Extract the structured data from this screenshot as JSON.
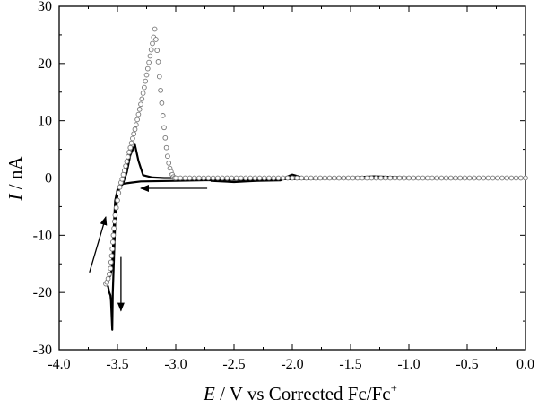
{
  "chart_data": {
    "type": "line",
    "xlabel": {
      "italic": "E",
      "rest": " / V vs Corrected Fc/Fc",
      "sup": "+"
    },
    "ylabel": {
      "italic": "I",
      "rest": " / nA"
    },
    "xlim": [
      -4.0,
      0.0
    ],
    "ylim": [
      -30,
      30
    ],
    "x_ticks": [
      "-4.0",
      "-3.5",
      "-3.0",
      "-2.5",
      "-2.0",
      "-1.5",
      "-1.0",
      "-0.5",
      "0.0"
    ],
    "y_ticks": [
      "-30",
      "-20",
      "-10",
      "0",
      "10",
      "20",
      "30"
    ],
    "grid": false,
    "series": [
      {
        "style": "solid",
        "x": [
          -2.7,
          -2.5,
          -2.4,
          -2.3,
          -2.1,
          -2.05,
          -2.0,
          -1.95,
          -1.9,
          -1.7,
          -1.5,
          -1.3,
          -1.0,
          -0.5,
          0.0,
          -0.5,
          -1.0,
          -1.5,
          -2.0,
          -2.5,
          -3.0,
          -3.3,
          -3.38,
          -3.45,
          -3.48,
          -3.5,
          -3.52,
          -3.53,
          -3.54,
          -3.545,
          -3.55,
          -3.555,
          -3.56,
          -3.57,
          -3.58,
          -3.59,
          -3.575,
          -3.56,
          -3.55,
          -3.54,
          -3.53,
          -3.52,
          -3.5,
          -3.48,
          -3.45,
          -3.42,
          -3.39,
          -3.35,
          -3.32,
          -3.28,
          -3.2,
          -3.1,
          -3.0
        ],
        "y": [
          -0.5,
          -0.7,
          -0.6,
          -0.5,
          -0.4,
          0.2,
          0.6,
          0.3,
          0.0,
          0.0,
          0.1,
          0.3,
          0.1,
          0.0,
          0.0,
          -0.1,
          -0.1,
          -0.1,
          -0.2,
          -0.3,
          -0.5,
          -0.6,
          -0.8,
          -1.0,
          -1.5,
          -3.0,
          -8.0,
          -14.0,
          -20.0,
          -26.5,
          -24.0,
          -21.5,
          -20.5,
          -20.0,
          -19.0,
          -18.5,
          -17.5,
          -17.0,
          -16.0,
          -13.0,
          -8.0,
          -4.0,
          -2.0,
          -1.2,
          -0.8,
          1.0,
          4.0,
          5.8,
          3.0,
          0.5,
          0.1,
          0.0,
          0.0
        ]
      },
      {
        "style": "open-circles",
        "x": [
          -3.6,
          -3.59,
          -3.58,
          -3.57,
          -3.56,
          -3.555,
          -3.55,
          -3.545,
          -3.54,
          -3.535,
          -3.53,
          -3.525,
          -3.52,
          -3.51,
          -3.5,
          -3.49,
          -3.48,
          -3.47,
          -3.46,
          -3.45,
          -3.44,
          -3.43,
          -3.42,
          -3.41,
          -3.4,
          -3.39,
          -3.38,
          -3.37,
          -3.36,
          -3.35,
          -3.34,
          -3.33,
          -3.32,
          -3.31,
          -3.3,
          -3.29,
          -3.28,
          -3.27,
          -3.26,
          -3.25,
          -3.24,
          -3.23,
          -3.22,
          -3.21,
          -3.2,
          -3.19,
          -3.18,
          -3.17,
          -3.16,
          -3.15,
          -3.14,
          -3.13,
          -3.12,
          -3.11,
          -3.1,
          -3.09,
          -3.08,
          -3.07,
          -3.06,
          -3.05,
          -3.04,
          -3.03,
          -3.02,
          -3.01
        ],
        "y": [
          -18.5,
          -18.2,
          -17.6,
          -16.8,
          -15.8,
          -14.7,
          -13.6,
          -12.4,
          -11.2,
          -10.0,
          -8.8,
          -7.6,
          -6.5,
          -5.2,
          -3.9,
          -2.6,
          -1.6,
          -0.8,
          -0.2,
          0.6,
          1.3,
          2.1,
          2.9,
          3.7,
          4.5,
          5.3,
          6.1,
          6.9,
          7.7,
          8.5,
          9.3,
          10.2,
          11.1,
          12.0,
          12.9,
          13.8,
          14.8,
          15.8,
          16.9,
          18.0,
          19.1,
          20.2,
          21.3,
          22.4,
          23.5,
          24.6,
          26.0,
          24.2,
          22.3,
          20.3,
          17.7,
          15.3,
          13.1,
          10.9,
          8.8,
          7.0,
          5.3,
          3.8,
          2.6,
          1.7,
          1.1,
          0.6,
          0.2,
          0.0
        ]
      }
    ],
    "annotations": [
      {
        "kind": "arrow",
        "label": "arrow-up-left",
        "from": [
          -3.74,
          -16.5
        ],
        "to": [
          -3.6,
          -6.8
        ]
      },
      {
        "kind": "arrow",
        "label": "arrow-down",
        "from": [
          -3.47,
          -13.8
        ],
        "to": [
          -3.47,
          -23.2
        ]
      },
      {
        "kind": "arrow",
        "label": "arrow-left",
        "from": [
          -2.73,
          -1.8
        ],
        "to": [
          -3.3,
          -1.8
        ]
      }
    ]
  }
}
